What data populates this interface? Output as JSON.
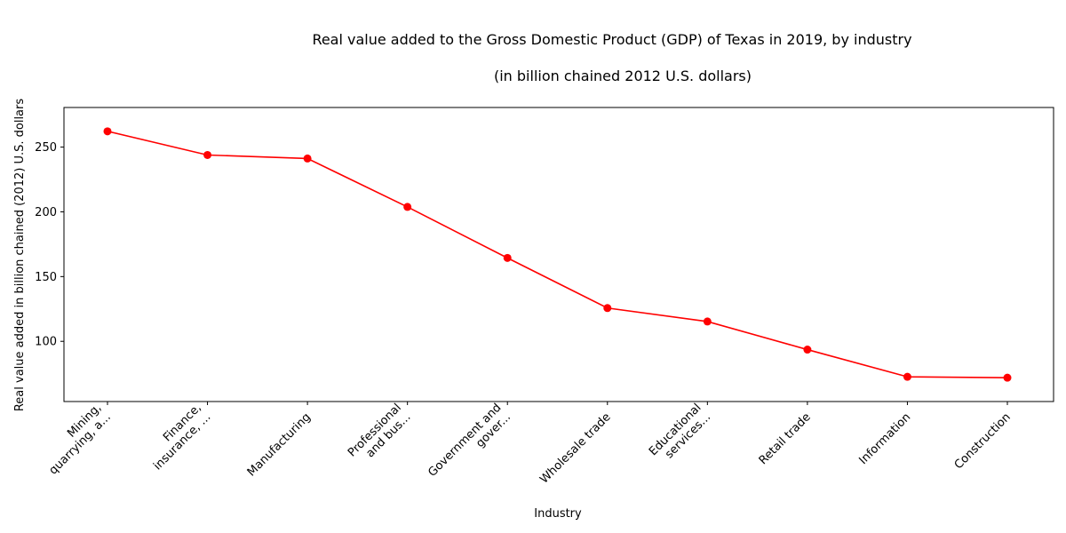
{
  "chart_data": {
    "type": "line",
    "title": "Real value added to the Gross Domestic Product (GDP) of Texas in 2019, by industry",
    "subtitle": "(in billion chained 2012 U.S. dollars)",
    "xlabel": "Industry",
    "ylabel": "Real value added in billion chained (2012) U.S. dollars",
    "categories": [
      [
        "Mining,",
        "quarrying, a..."
      ],
      [
        "Finance,",
        "insurance, ..."
      ],
      [
        "Manufacturing"
      ],
      [
        "Professional",
        "and bus..."
      ],
      [
        "Government and",
        "gover..."
      ],
      [
        "Wholesale trade"
      ],
      [
        "Educational",
        "services..."
      ],
      [
        "Retail trade"
      ],
      [
        "Information"
      ],
      [
        "Construction"
      ]
    ],
    "values": [
      262.2,
      243.9,
      241.2,
      203.8,
      164.4,
      125.7,
      115.3,
      93.6,
      72.6,
      71.9
    ],
    "ylim": [
      53.5,
      280.6
    ],
    "yticks": [
      100,
      150,
      200,
      250
    ],
    "line_color": "#ff0000",
    "grid": false,
    "legend": "none"
  }
}
